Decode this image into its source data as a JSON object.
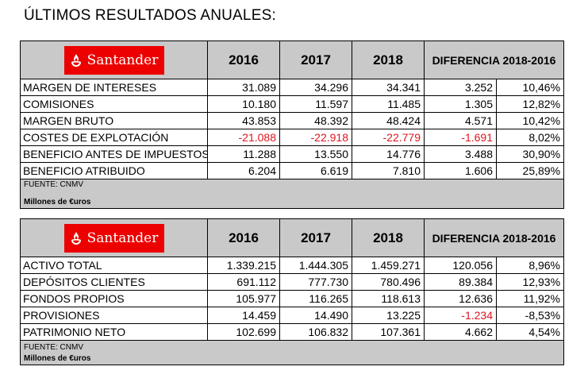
{
  "title": "ÚLTIMOS RESULTADOS ANUALES:",
  "brand": {
    "name": "Santander",
    "color": "#ec0000",
    "icon": "flame-icon"
  },
  "colors": {
    "negative": "#e0141e",
    "header_bg": "#c9c9c9"
  },
  "tables": [
    {
      "headers": [
        "2016",
        "2017",
        "2018",
        "DIFERENCIA 2018-2016"
      ],
      "rows": [
        {
          "label": "MARGEN DE INTERESES",
          "values": [
            "31.089",
            "34.296",
            "34.341",
            "3.252",
            "10,46%"
          ]
        },
        {
          "label": "COMISIONES",
          "values": [
            "10.180",
            "11.597",
            "11.485",
            "1.305",
            "12,82%"
          ]
        },
        {
          "label": "MARGEN BRUTO",
          "values": [
            "43.853",
            "48.392",
            "48.424",
            "4.571",
            "10,42%"
          ]
        },
        {
          "label": "COSTES DE EXPLOTACIÓN",
          "values": [
            "-21.088",
            "-22.918",
            "-22.779",
            "-1.691",
            "8,02%"
          ]
        },
        {
          "label": "BENEFICIO ANTES DE IMPUESTOS",
          "values": [
            "11.288",
            "13.550",
            "14.776",
            "3.488",
            "30,90%"
          ]
        },
        {
          "label": "BENEFICIO ATRIBUIDO",
          "values": [
            "6.204",
            "6.619",
            "7.810",
            "1.606",
            "25,89%"
          ]
        }
      ],
      "source": "FUENTE: CNMV",
      "units": "Millones de €uros"
    },
    {
      "headers": [
        "2016",
        "2017",
        "2018",
        "DIFERENCIA 2018-2016"
      ],
      "rows": [
        {
          "label": "ACTIVO TOTAL",
          "values": [
            "1.339.215",
            "1.444.305",
            "1.459.271",
            "120.056",
            "8,96%"
          ]
        },
        {
          "label": "DEPÓSITOS CLIENTES",
          "values": [
            "691.112",
            "777.730",
            "780.496",
            "89.384",
            "12,93%"
          ]
        },
        {
          "label": "FONDOS PROPIOS",
          "values": [
            "105.977",
            "116.265",
            "118.613",
            "12.636",
            "11,92%"
          ]
        },
        {
          "label": "PROVISIONES",
          "values": [
            "14.459",
            "14.490",
            "13.225",
            "-1.234",
            "-8,53%"
          ]
        },
        {
          "label": "PATRIMONIO NETO",
          "values": [
            "102.699",
            "106.832",
            "107.361",
            "4.662",
            "4,54%"
          ]
        }
      ],
      "source": "FUENTE: CNMV",
      "units": "Millones de €uros"
    }
  ]
}
